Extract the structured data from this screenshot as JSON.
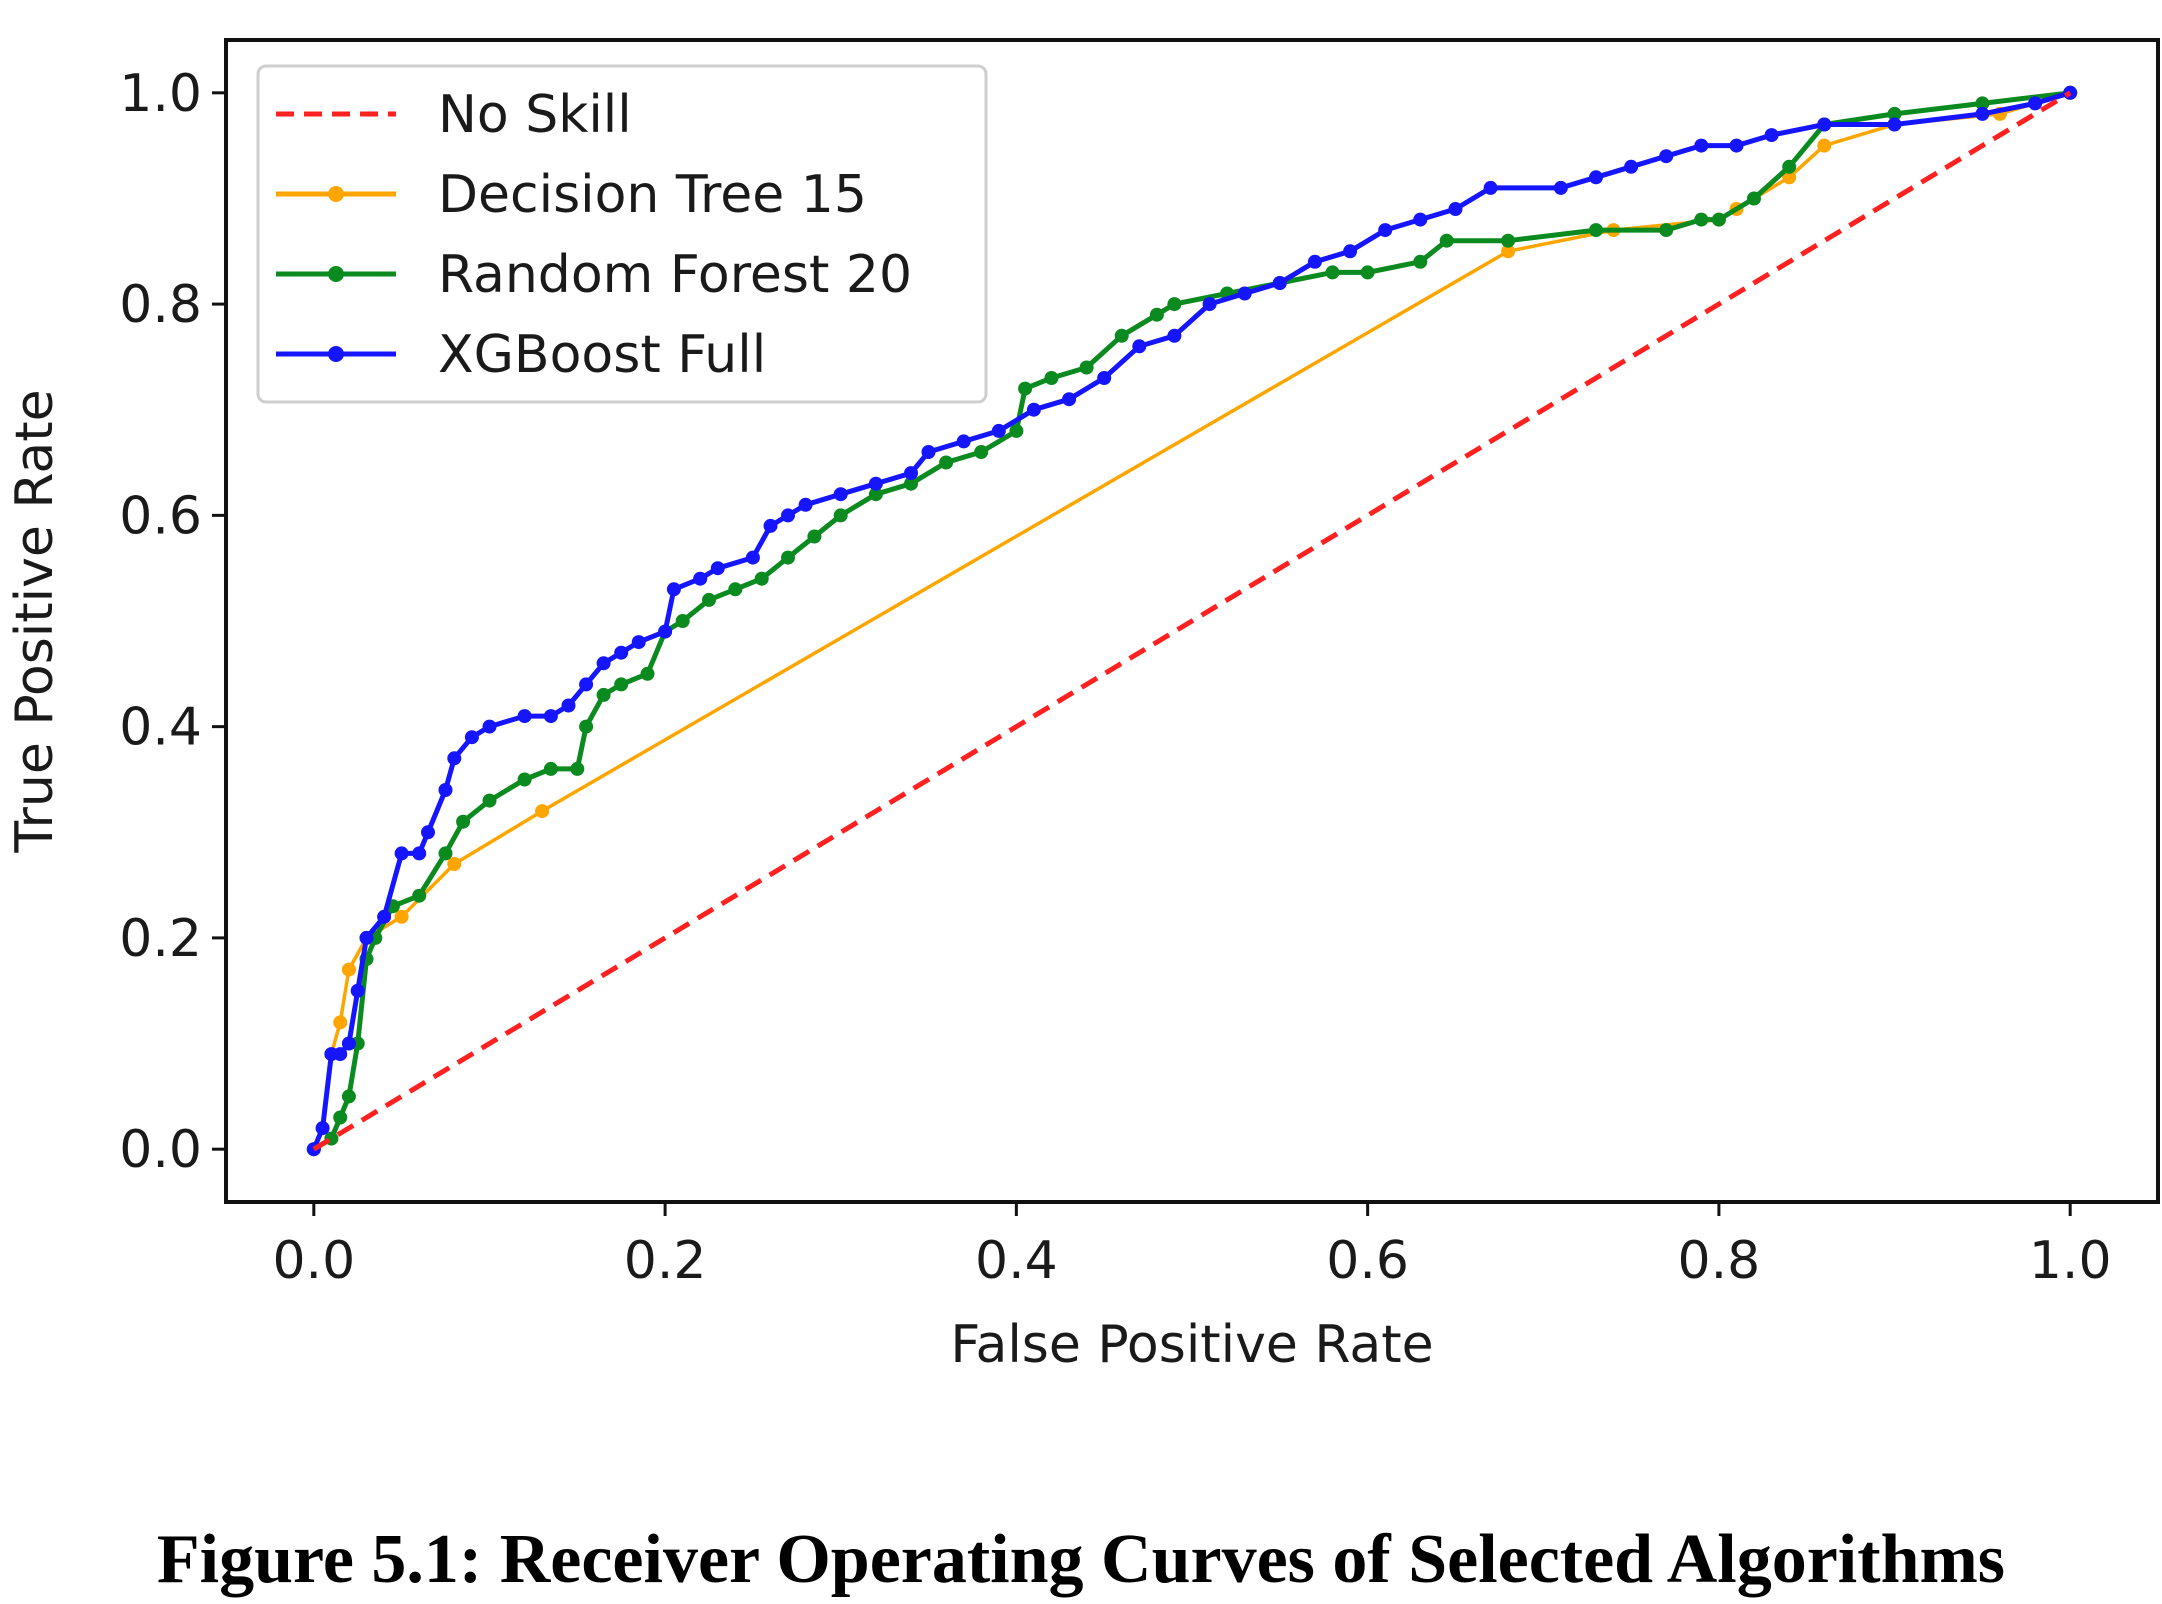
{
  "caption": "Figure 5.1: Receiver Operating Curves of Selected Algorithms",
  "chart_data": {
    "type": "line",
    "xlabel": "False Positive Rate",
    "ylabel": "True Positive Rate",
    "xlim": [
      -0.05,
      1.05
    ],
    "ylim": [
      -0.05,
      1.05
    ],
    "xticks": [
      "0.0",
      "0.2",
      "0.4",
      "0.6",
      "0.8",
      "1.0"
    ],
    "yticks": [
      "0.0",
      "0.2",
      "0.4",
      "0.6",
      "0.8",
      "1.0"
    ],
    "legend_position": "upper-left",
    "grid": false,
    "series": [
      {
        "name": "No Skill",
        "color": "#ff2020",
        "style": "dashed",
        "markers": false,
        "x": [
          0.0,
          1.0
        ],
        "y": [
          0.0,
          1.0
        ]
      },
      {
        "name": "Decision Tree 15",
        "color": "#ffa500",
        "style": "solid",
        "markers": true,
        "x": [
          0.0,
          0.005,
          0.01,
          0.015,
          0.02,
          0.03,
          0.05,
          0.08,
          0.13,
          0.68,
          0.74,
          0.8,
          0.81,
          0.84,
          0.86,
          0.9,
          0.96,
          1.0
        ],
        "y": [
          0.0,
          0.02,
          0.09,
          0.12,
          0.17,
          0.2,
          0.22,
          0.27,
          0.32,
          0.85,
          0.87,
          0.88,
          0.89,
          0.92,
          0.95,
          0.97,
          0.98,
          1.0
        ]
      },
      {
        "name": "Random Forest 20",
        "color": "#0a8a1f",
        "style": "solid",
        "markers": true,
        "x": [
          0.0,
          0.01,
          0.015,
          0.02,
          0.025,
          0.03,
          0.035,
          0.045,
          0.06,
          0.075,
          0.085,
          0.1,
          0.12,
          0.135,
          0.15,
          0.155,
          0.165,
          0.175,
          0.19,
          0.2,
          0.21,
          0.225,
          0.24,
          0.255,
          0.27,
          0.285,
          0.3,
          0.32,
          0.34,
          0.36,
          0.38,
          0.4,
          0.405,
          0.42,
          0.44,
          0.46,
          0.48,
          0.49,
          0.52,
          0.55,
          0.58,
          0.6,
          0.63,
          0.645,
          0.68,
          0.73,
          0.77,
          0.79,
          0.8,
          0.82,
          0.84,
          0.86,
          0.9,
          0.95,
          1.0
        ],
        "y": [
          0.0,
          0.01,
          0.03,
          0.05,
          0.1,
          0.18,
          0.2,
          0.23,
          0.24,
          0.28,
          0.31,
          0.33,
          0.35,
          0.36,
          0.36,
          0.4,
          0.43,
          0.44,
          0.45,
          0.49,
          0.5,
          0.52,
          0.53,
          0.54,
          0.56,
          0.58,
          0.6,
          0.62,
          0.63,
          0.65,
          0.66,
          0.68,
          0.72,
          0.73,
          0.74,
          0.77,
          0.79,
          0.8,
          0.81,
          0.82,
          0.83,
          0.83,
          0.84,
          0.86,
          0.86,
          0.87,
          0.87,
          0.88,
          0.88,
          0.9,
          0.93,
          0.97,
          0.98,
          0.99,
          1.0
        ]
      },
      {
        "name": "XGBoost Full",
        "color": "#1515ff",
        "style": "solid",
        "markers": true,
        "x": [
          0.0,
          0.005,
          0.01,
          0.015,
          0.02,
          0.025,
          0.03,
          0.04,
          0.05,
          0.06,
          0.065,
          0.075,
          0.08,
          0.09,
          0.1,
          0.12,
          0.135,
          0.145,
          0.155,
          0.165,
          0.175,
          0.185,
          0.2,
          0.205,
          0.22,
          0.23,
          0.25,
          0.26,
          0.27,
          0.28,
          0.3,
          0.32,
          0.34,
          0.35,
          0.37,
          0.39,
          0.41,
          0.43,
          0.45,
          0.47,
          0.49,
          0.51,
          0.53,
          0.55,
          0.57,
          0.59,
          0.61,
          0.63,
          0.65,
          0.67,
          0.71,
          0.73,
          0.75,
          0.77,
          0.79,
          0.81,
          0.83,
          0.86,
          0.9,
          0.95,
          0.98,
          1.0
        ],
        "y": [
          0.0,
          0.02,
          0.09,
          0.09,
          0.1,
          0.15,
          0.2,
          0.22,
          0.28,
          0.28,
          0.3,
          0.34,
          0.37,
          0.39,
          0.4,
          0.41,
          0.41,
          0.42,
          0.44,
          0.46,
          0.47,
          0.48,
          0.49,
          0.53,
          0.54,
          0.55,
          0.56,
          0.59,
          0.6,
          0.61,
          0.62,
          0.63,
          0.64,
          0.66,
          0.67,
          0.68,
          0.7,
          0.71,
          0.73,
          0.76,
          0.77,
          0.8,
          0.81,
          0.82,
          0.84,
          0.85,
          0.87,
          0.88,
          0.89,
          0.91,
          0.91,
          0.92,
          0.93,
          0.94,
          0.95,
          0.95,
          0.96,
          0.97,
          0.97,
          0.98,
          0.99,
          1.0
        ]
      }
    ]
  }
}
